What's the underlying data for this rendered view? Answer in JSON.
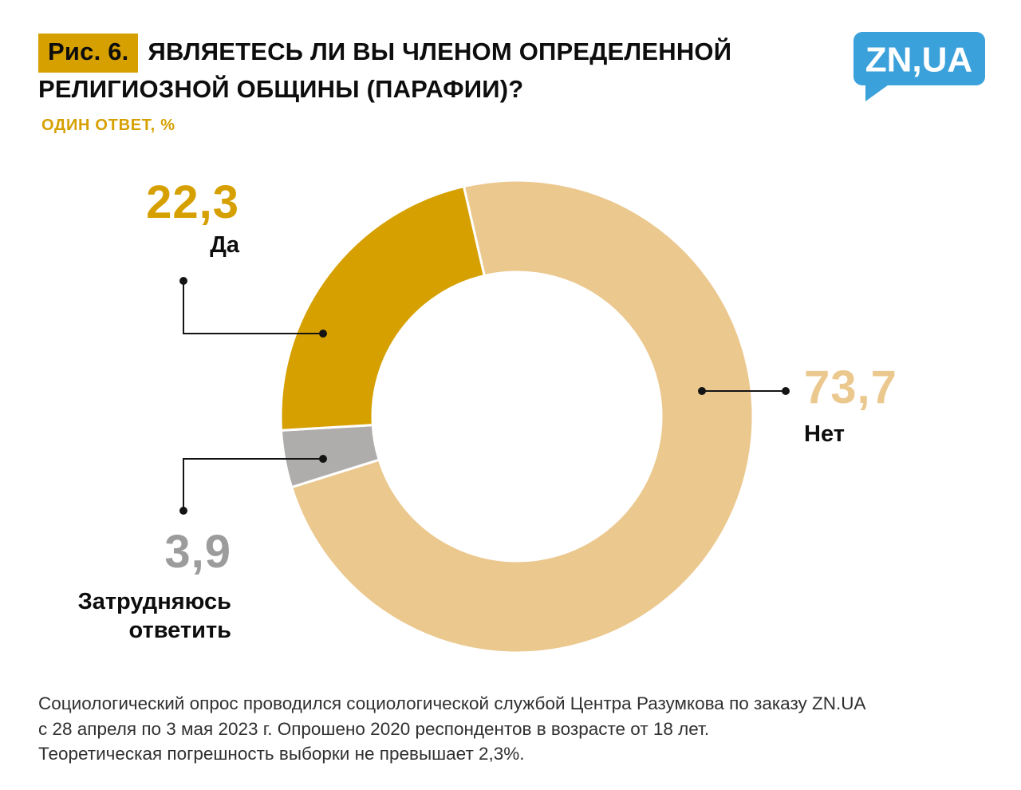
{
  "header": {
    "figure_label": "Рис. 6.",
    "title": "ЯВЛЯЕТЕСЬ ЛИ ВЫ ЧЛЕНОМ ОПРЕДЕЛЕННОЙ РЕЛИГИОЗНОЙ ОБЩИНЫ (ПАРАФИИ)?",
    "subtitle": "ОДИН ОТВЕТ, %"
  },
  "logo": {
    "text": "ZN,UA",
    "color": "#3BA1DB"
  },
  "colors": {
    "accent_gold": "#D6A000",
    "tan": "#EBC88E",
    "gray": "#AFADAB",
    "logo_blue": "#3BA1DB",
    "text_black": "#0d0d0d",
    "footer_text": "#303030"
  },
  "chart_data": {
    "type": "pie",
    "subtype": "donut",
    "title": "Являетесь ли вы членом определенной религиозной общины (парафии)?",
    "units": "%",
    "start_angle_deg_from_top": -13,
    "segments": [
      {
        "id": "no",
        "label": "Нет",
        "value": 73.7,
        "value_label": "73,7",
        "color": "#EBC88E"
      },
      {
        "id": "dk",
        "label": "Затрудняюсь ответить",
        "value": 3.9,
        "value_label": "3,9",
        "color": "#AFADAB"
      },
      {
        "id": "yes",
        "label": "Да",
        "value": 22.3,
        "value_label": "22,3",
        "color": "#D6A000"
      }
    ]
  },
  "footer": {
    "line1": "Социологический опрос проводился социологической службой Центра Разумкова по заказу ZN.UA",
    "line2": "с 28 апреля по 3 мая 2023 г. Опрошено 2020 респондентов в возрасте от 18 лет.",
    "line3": "Теоретическая погрешность выборки не превышает 2,3%."
  }
}
